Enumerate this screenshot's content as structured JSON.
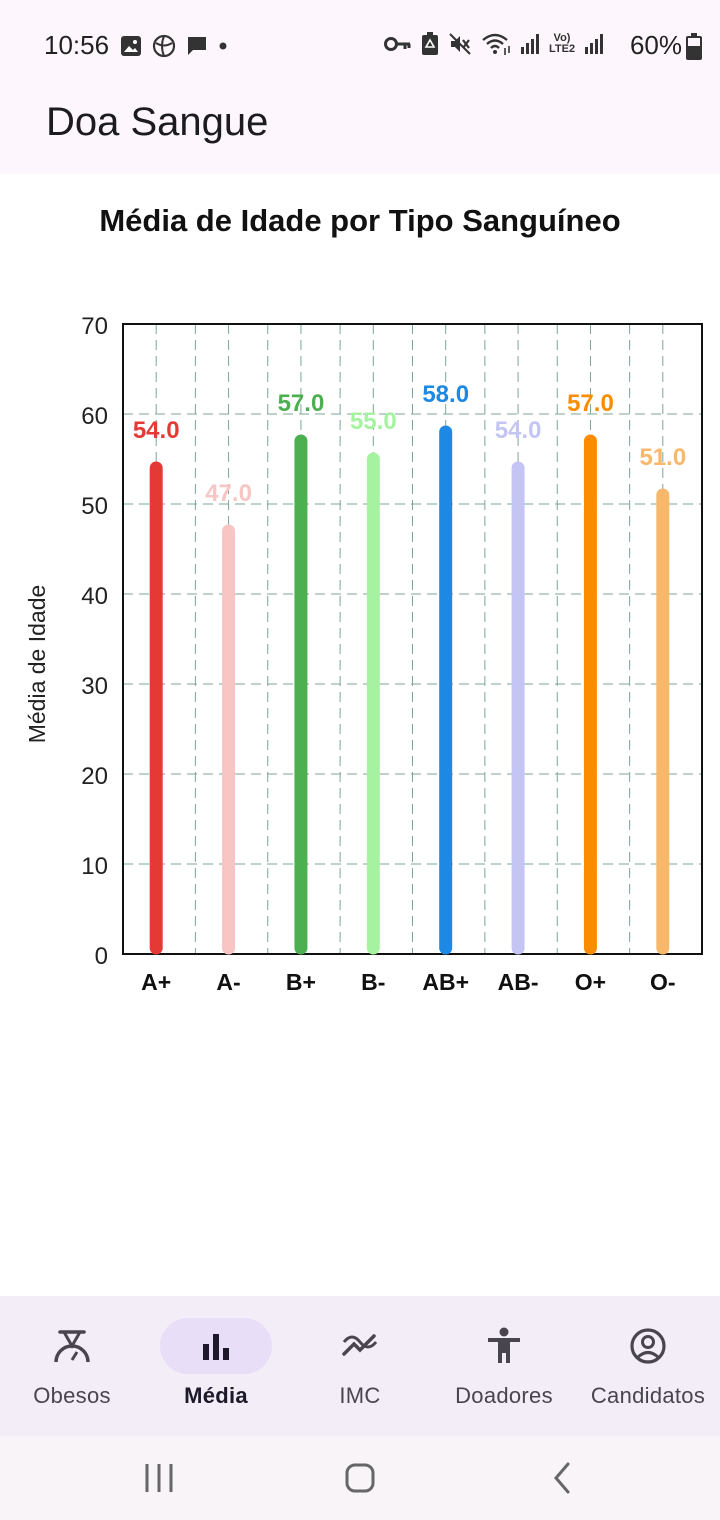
{
  "status_bar": {
    "time": "10:56",
    "battery_percent": "60%",
    "battery_level": 0.6,
    "left_icons": [
      "image-icon",
      "sync-icon",
      "message-icon",
      "dot-icon"
    ],
    "right_icons": [
      "key-icon",
      "recycle-icon",
      "mute-icon",
      "wifi-icon",
      "signal-icon",
      "lte2-icon",
      "signal-icon"
    ],
    "lte_label": "Vo) LTE2"
  },
  "app_bar": {
    "title": "Doa Sangue"
  },
  "chart_data": {
    "type": "bar",
    "title": "Média de Idade por Tipo Sanguíneo",
    "ylabel": "Média de Idade",
    "xlabel": "",
    "categories": [
      "A+",
      "A-",
      "B+",
      "B-",
      "AB+",
      "AB-",
      "O+",
      "O-"
    ],
    "values": [
      54.0,
      47.0,
      57.0,
      55.0,
      58.0,
      54.0,
      57.0,
      51.0
    ],
    "value_labels": [
      "54.0",
      "47.0",
      "57.0",
      "55.0",
      "58.0",
      "54.0",
      "57.0",
      "51.0"
    ],
    "colors": [
      "#e53935",
      "#f8c4c4",
      "#4caf50",
      "#a5f3a0",
      "#1e88e5",
      "#c5c5f5",
      "#fb8c00",
      "#f8b86c"
    ],
    "ylim": [
      0,
      70
    ],
    "yticks": [
      "0",
      "10",
      "20",
      "30",
      "40",
      "50",
      "60",
      "70"
    ],
    "grid": true,
    "grid_color": "#7ea594"
  },
  "bottom_nav": {
    "items": [
      {
        "label": "Obesos",
        "icon": "scale-icon",
        "active": false
      },
      {
        "label": "Média",
        "icon": "bar-chart-icon",
        "active": true
      },
      {
        "label": "IMC",
        "icon": "trending-icon",
        "active": false
      },
      {
        "label": "Doadores",
        "icon": "person-icon",
        "active": false
      },
      {
        "label": "Candidatos",
        "icon": "account-circle-icon",
        "active": false
      }
    ],
    "active_color": "#e8def8"
  },
  "system_nav": {
    "buttons": [
      "recents-icon",
      "home-icon",
      "back-icon"
    ]
  }
}
